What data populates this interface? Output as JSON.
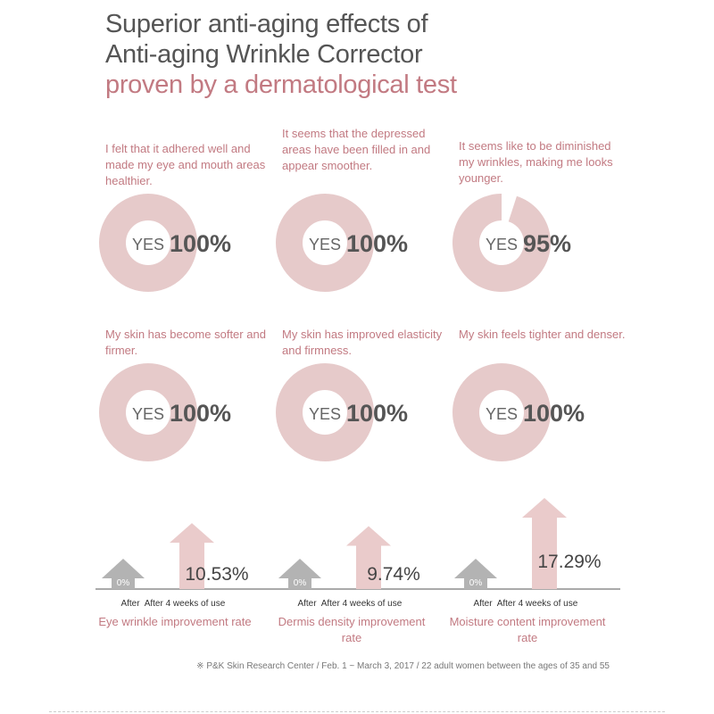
{
  "title": {
    "line1": "Superior anti-aging effects of",
    "line2": "Anti-aging Wrinkle Corrector",
    "line3": "proven by a dermatological test"
  },
  "colors": {
    "accent": "#c27a82",
    "donut": "#e6caca",
    "gray_arrow": "#b3b3b3",
    "pink_arrow": "#eacbcb"
  },
  "chart_data": [
    {
      "type": "pie",
      "variant": "donut",
      "label": "YES",
      "items": [
        {
          "quote": "I felt that it adhered well and made my eye and mouth areas healthier.",
          "value": 100,
          "value_label": "100%"
        },
        {
          "quote": "It seems that the depressed areas have been filled in and appear smoother.",
          "value": 100,
          "value_label": "100%"
        },
        {
          "quote": "It seems like to be diminished my wrinkles, making me looks younger.",
          "value": 95,
          "value_label": "95%"
        },
        {
          "quote": "My skin has become softer and firmer.",
          "value": 100,
          "value_label": "100%"
        },
        {
          "quote": "My skin has improved elasticity and firmness.",
          "value": 100,
          "value_label": "100%"
        },
        {
          "quote": "My skin feels tighter and denser.",
          "value": 100,
          "value_label": "100%"
        }
      ]
    },
    {
      "type": "bar",
      "categories": [
        "After",
        "After 4 weeks of use"
      ],
      "groups": [
        {
          "metric": "Eye wrinkle improvement rate",
          "values": [
            0,
            10.53
          ],
          "labels": [
            "0%",
            "10.53%"
          ]
        },
        {
          "metric": "Dermis density improvement rate",
          "values": [
            0,
            9.74
          ],
          "labels": [
            "0%",
            "9.74%"
          ]
        },
        {
          "metric": "Moisture content improvement rate",
          "values": [
            0,
            17.29
          ],
          "labels": [
            "0%",
            "17.29%"
          ]
        }
      ]
    }
  ],
  "footnote": "※ P&K Skin Research Center / Feb. 1 ~ March 3, 2017 / 22 adult women between the ages of 35 and 55"
}
